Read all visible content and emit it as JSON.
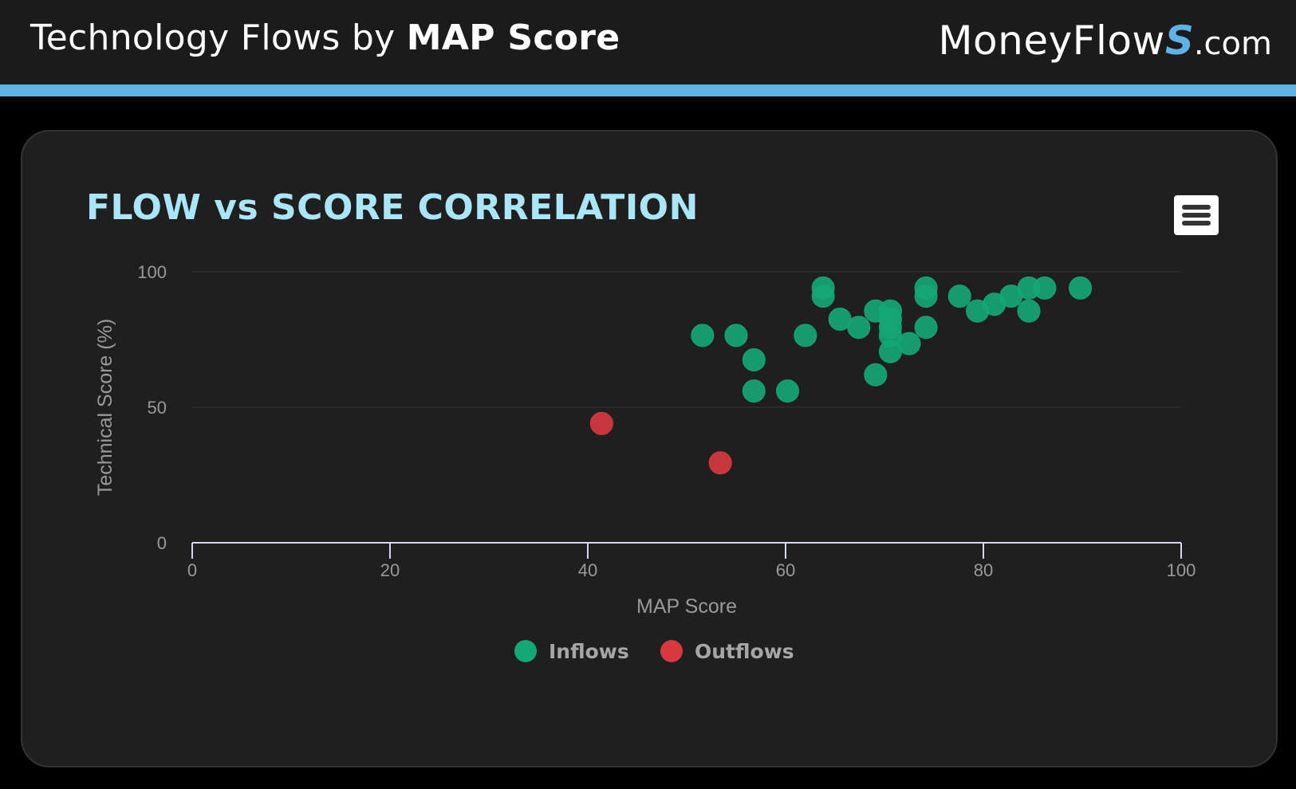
{
  "header": {
    "title_prefix": "Technology Flows by ",
    "title_strong": "MAP Score",
    "logo_brand": "MoneyFlow",
    "logo_s": "S",
    "logo_domain": ".com"
  },
  "colors": {
    "inflows": "#14a876",
    "outflows": "#d8393f",
    "title": "#a9e6f7",
    "stripe": "#5fb3e4"
  },
  "chart_data": {
    "type": "scatter",
    "title": "FLOW vs SCORE CORRELATION",
    "xlabel": "MAP Score",
    "ylabel": "Technical Score (%)",
    "xlim": [
      0,
      100
    ],
    "ylim": [
      0,
      100
    ],
    "xticks": [
      0,
      20,
      40,
      60,
      80,
      100
    ],
    "yticks": [
      0,
      50,
      100
    ],
    "legend_position": "bottom-center",
    "series": [
      {
        "name": "Inflows",
        "color": "#14a876",
        "points": [
          {
            "x": 51.6,
            "y": 76.5
          },
          {
            "x": 55.0,
            "y": 76.5
          },
          {
            "x": 56.8,
            "y": 67.5
          },
          {
            "x": 56.8,
            "y": 56.0
          },
          {
            "x": 60.2,
            "y": 56.0
          },
          {
            "x": 62.0,
            "y": 76.5
          },
          {
            "x": 63.8,
            "y": 94.0
          },
          {
            "x": 63.8,
            "y": 91.0
          },
          {
            "x": 65.5,
            "y": 82.5
          },
          {
            "x": 67.4,
            "y": 79.5
          },
          {
            "x": 69.1,
            "y": 85.5
          },
          {
            "x": 69.1,
            "y": 62.0
          },
          {
            "x": 70.6,
            "y": 85.5
          },
          {
            "x": 70.6,
            "y": 82.5
          },
          {
            "x": 70.6,
            "y": 79.5
          },
          {
            "x": 70.6,
            "y": 76.5
          },
          {
            "x": 70.6,
            "y": 70.5
          },
          {
            "x": 72.5,
            "y": 73.5
          },
          {
            "x": 74.2,
            "y": 94.0
          },
          {
            "x": 74.2,
            "y": 91.0
          },
          {
            "x": 74.2,
            "y": 79.5
          },
          {
            "x": 77.6,
            "y": 91.0
          },
          {
            "x": 79.4,
            "y": 85.5
          },
          {
            "x": 81.1,
            "y": 88.0
          },
          {
            "x": 82.8,
            "y": 91.0
          },
          {
            "x": 84.6,
            "y": 94.0
          },
          {
            "x": 84.6,
            "y": 85.5
          },
          {
            "x": 86.2,
            "y": 94.0
          },
          {
            "x": 89.8,
            "y": 94.0
          }
        ]
      },
      {
        "name": "Outflows",
        "color": "#d8393f",
        "points": [
          {
            "x": 41.4,
            "y": 44.0
          },
          {
            "x": 53.4,
            "y": 29.5
          }
        ]
      }
    ]
  }
}
